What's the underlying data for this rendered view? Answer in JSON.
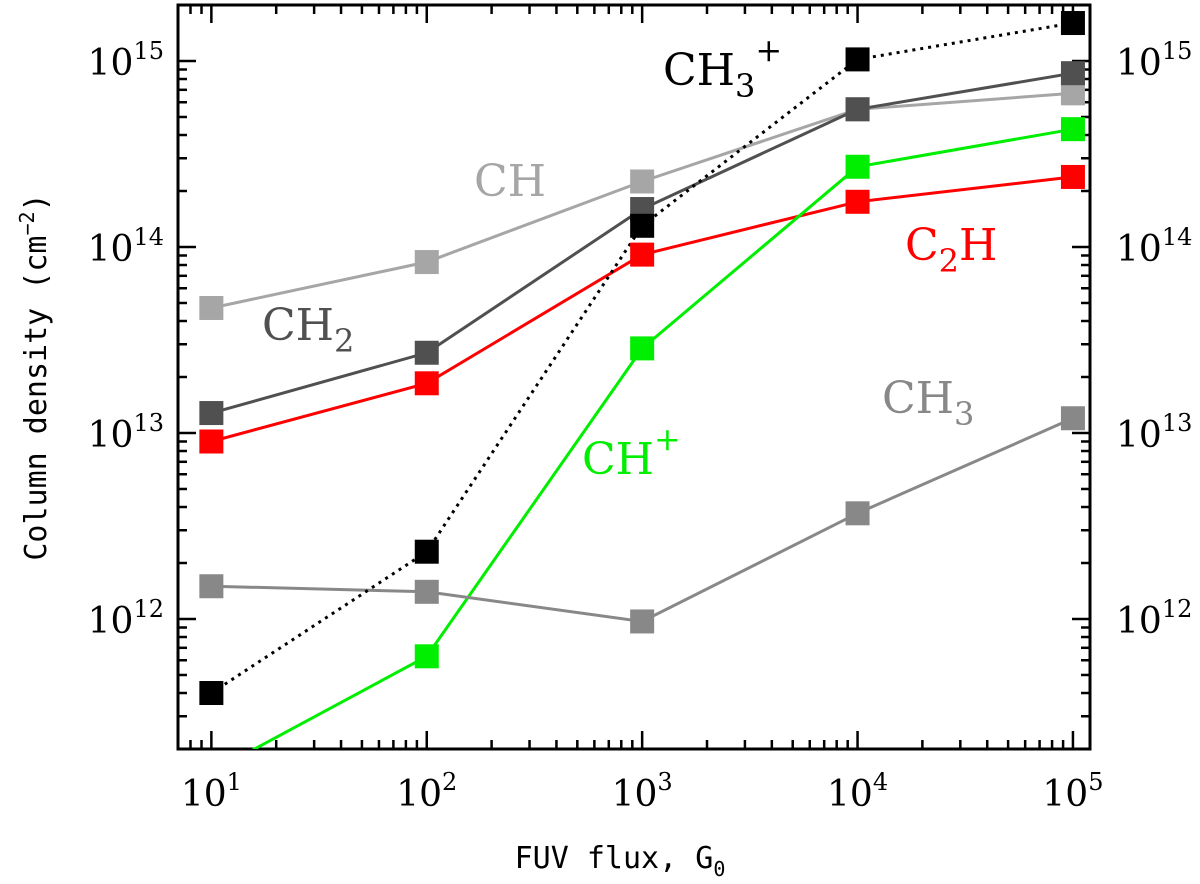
{
  "chart_data": {
    "type": "line",
    "title": "",
    "xlabel": "FUV flux, G",
    "xlabel_sub": "0",
    "ylabel": "Column density (cm",
    "ylabel_sup": "−2",
    "ylabel_end": ")",
    "xscale": "log",
    "yscale": "log",
    "xlim": [
      7,
      120000
    ],
    "ylim": [
      200000000000.0,
      2000000000000000.0
    ],
    "grid": false,
    "x_ticks": [
      {
        "base": "10",
        "exp": "1"
      },
      {
        "base": "10",
        "exp": "2"
      },
      {
        "base": "10",
        "exp": "3"
      },
      {
        "base": "10",
        "exp": "4"
      },
      {
        "base": "10",
        "exp": "5"
      }
    ],
    "y_ticks": [
      {
        "base": "10",
        "exp": "12"
      },
      {
        "base": "10",
        "exp": "13"
      },
      {
        "base": "10",
        "exp": "14"
      },
      {
        "base": "10",
        "exp": "15"
      }
    ],
    "x": [
      10,
      100,
      1000,
      10000,
      100000
    ],
    "series": [
      {
        "name": "CH",
        "label_main": "CH",
        "label_sub": "",
        "label_sup": "",
        "color": "#a6a6a6",
        "dash": "solid",
        "values": [
          47000000000000.0,
          83000000000000.0,
          225000000000000.0,
          550000000000000.0,
          670000000000000.0
        ]
      },
      {
        "name": "CH2",
        "label_main": "CH",
        "label_sub": "2",
        "label_sup": "",
        "color": "#505050",
        "dash": "solid",
        "values": [
          12800000000000.0,
          27000000000000.0,
          160000000000000.0,
          550000000000000.0,
          860000000000000.0
        ]
      },
      {
        "name": "C2H",
        "label_main": "C",
        "label_sub": "2",
        "label_after": "H",
        "label_sup": "",
        "color": "#ff0000",
        "dash": "solid",
        "values": [
          9000000000000.0,
          18500000000000.0,
          91000000000000.0,
          175000000000000.0,
          238000000000000.0
        ]
      },
      {
        "name": "CH+",
        "label_main": "CH",
        "label_sub": "",
        "label_sup": "+",
        "color": "#00ee00",
        "dash": "solid",
        "values": [
          150000000000.0,
          630000000000.0,
          28500000000000.0,
          270000000000000.0,
          430000000000000.0
        ]
      },
      {
        "name": "CH3",
        "label_main": "CH",
        "label_sub": "3",
        "label_sup": "",
        "color": "#888888",
        "dash": "solid",
        "values": [
          1500000000000.0,
          1400000000000.0,
          970000000000.0,
          3700000000000.0,
          12000000000000.0
        ]
      },
      {
        "name": "CH3+",
        "label_main": "CH",
        "label_sub": "3",
        "label_sup": "+",
        "color": "#000000",
        "dash": "dotted",
        "values": [
          400000000000.0,
          2300000000000.0,
          130000000000000.0,
          1020000000000000.0,
          1600000000000000.0
        ]
      }
    ]
  }
}
